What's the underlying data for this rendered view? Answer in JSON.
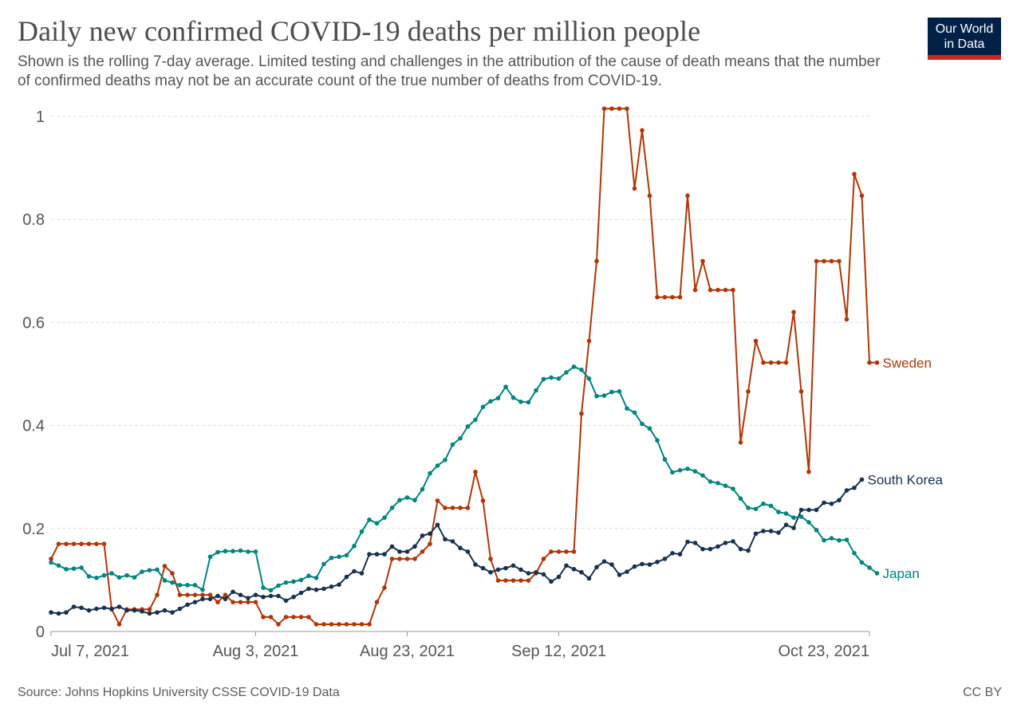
{
  "header": {
    "title": "Daily new confirmed COVID-19 deaths per million people",
    "subtitle": "Shown is the rolling 7-day average. Limited testing and challenges in the attribution of the cause of death means that the number of confirmed deaths may not be an accurate count of the true number of deaths from COVID-19.",
    "logo_line1": "Our World",
    "logo_line2": "in Data"
  },
  "footer": {
    "source": "Source: Johns Hopkins University CSSE COVID-19 Data",
    "license": "CC BY"
  },
  "chart_data": {
    "type": "line",
    "title": "Daily new confirmed COVID-19 deaths per million people",
    "subtitle": "Shown is the rolling 7-day average.",
    "xlabel": "",
    "ylabel": "",
    "x_start": "2021-07-07",
    "x_end": "2021-10-23",
    "x_ticks": [
      {
        "label": "Jul 7, 2021",
        "day": 0
      },
      {
        "label": "Aug 3, 2021",
        "day": 27
      },
      {
        "label": "Aug 23, 2021",
        "day": 47
      },
      {
        "label": "Sep 12, 2021",
        "day": 67
      },
      {
        "label": "Oct 23, 2021",
        "day": 108
      }
    ],
    "y_ticks": [
      {
        "label": "0",
        "value": 0
      },
      {
        "label": "0.2",
        "value": 0.2
      },
      {
        "label": "0.4",
        "value": 0.4
      },
      {
        "label": "0.6",
        "value": 0.6
      },
      {
        "label": "0.8",
        "value": 0.8
      },
      {
        "label": "1",
        "value": 1
      }
    ],
    "ylim": [
      0,
      1
    ],
    "grid": "horizontal-dashed",
    "legend": "inline-right",
    "series": [
      {
        "name": "Sweden",
        "color": "#b13507",
        "values": [
          0.141,
          0.17,
          0.17,
          0.17,
          0.17,
          0.17,
          0.17,
          0.17,
          0.043,
          0.014,
          0.043,
          0.043,
          0.043,
          0.043,
          0.071,
          0.127,
          0.113,
          0.071,
          0.071,
          0.071,
          0.071,
          0.071,
          0.057,
          0.071,
          0.057,
          0.057,
          0.057,
          0.057,
          0.028,
          0.028,
          0.014,
          0.028,
          0.028,
          0.028,
          0.028,
          0.014,
          0.014,
          0.014,
          0.014,
          0.014,
          0.014,
          0.014,
          0.014,
          0.057,
          0.085,
          0.141,
          0.141,
          0.141,
          0.141,
          0.155,
          0.17,
          0.254,
          0.24,
          0.24,
          0.24,
          0.24,
          0.31,
          0.254,
          0.141,
          0.099,
          0.099,
          0.099,
          0.099,
          0.099,
          0.113,
          0.141,
          0.155,
          0.155,
          0.155,
          0.155,
          0.423,
          0.564,
          0.719,
          1.015,
          1.015,
          1.015,
          1.015,
          0.86,
          0.973,
          0.846,
          0.649,
          0.649,
          0.649,
          0.649,
          0.846,
          0.663,
          0.719,
          0.663,
          0.663,
          0.663,
          0.663,
          0.367,
          0.466,
          0.564,
          0.522,
          0.522,
          0.522,
          0.522,
          0.62,
          0.466,
          0.31,
          0.719,
          0.719,
          0.719,
          0.719,
          0.606,
          0.888,
          0.846,
          0.522,
          0.522
        ]
      },
      {
        "name": "South Korea",
        "color": "#18314f",
        "values": [
          0.037,
          0.035,
          0.037,
          0.048,
          0.046,
          0.041,
          0.044,
          0.046,
          0.044,
          0.048,
          0.041,
          0.041,
          0.039,
          0.035,
          0.037,
          0.041,
          0.037,
          0.044,
          0.052,
          0.057,
          0.063,
          0.063,
          0.069,
          0.063,
          0.077,
          0.071,
          0.065,
          0.071,
          0.067,
          0.069,
          0.069,
          0.06,
          0.067,
          0.075,
          0.083,
          0.081,
          0.083,
          0.087,
          0.091,
          0.106,
          0.117,
          0.113,
          0.15,
          0.15,
          0.15,
          0.165,
          0.155,
          0.155,
          0.165,
          0.186,
          0.19,
          0.207,
          0.179,
          0.175,
          0.162,
          0.155,
          0.13,
          0.123,
          0.115,
          0.12,
          0.123,
          0.128,
          0.12,
          0.113,
          0.115,
          0.111,
          0.097,
          0.106,
          0.128,
          0.121,
          0.115,
          0.103,
          0.125,
          0.136,
          0.13,
          0.11,
          0.116,
          0.126,
          0.131,
          0.13,
          0.135,
          0.141,
          0.152,
          0.15,
          0.174,
          0.172,
          0.16,
          0.16,
          0.165,
          0.172,
          0.175,
          0.16,
          0.157,
          0.19,
          0.195,
          0.195,
          0.192,
          0.207,
          0.201,
          0.236,
          0.236,
          0.236,
          0.25,
          0.248,
          0.255,
          0.274,
          0.279,
          0.295
        ]
      },
      {
        "name": "Japan",
        "color": "#00847e",
        "values": [
          0.134,
          0.128,
          0.121,
          0.122,
          0.124,
          0.107,
          0.104,
          0.109,
          0.113,
          0.105,
          0.109,
          0.105,
          0.116,
          0.119,
          0.12,
          0.099,
          0.095,
          0.09,
          0.09,
          0.09,
          0.081,
          0.145,
          0.154,
          0.156,
          0.156,
          0.157,
          0.155,
          0.155,
          0.085,
          0.08,
          0.089,
          0.095,
          0.097,
          0.1,
          0.108,
          0.104,
          0.131,
          0.143,
          0.145,
          0.148,
          0.166,
          0.194,
          0.217,
          0.21,
          0.221,
          0.24,
          0.255,
          0.26,
          0.255,
          0.276,
          0.307,
          0.322,
          0.333,
          0.363,
          0.375,
          0.398,
          0.411,
          0.436,
          0.447,
          0.453,
          0.475,
          0.454,
          0.446,
          0.445,
          0.468,
          0.49,
          0.493,
          0.491,
          0.503,
          0.514,
          0.508,
          0.491,
          0.457,
          0.458,
          0.465,
          0.466,
          0.433,
          0.425,
          0.403,
          0.394,
          0.371,
          0.334,
          0.309,
          0.313,
          0.316,
          0.311,
          0.303,
          0.291,
          0.288,
          0.283,
          0.277,
          0.258,
          0.24,
          0.238,
          0.248,
          0.244,
          0.232,
          0.229,
          0.221,
          0.223,
          0.212,
          0.197,
          0.177,
          0.181,
          0.177,
          0.178,
          0.152,
          0.134,
          0.124,
          0.113
        ]
      }
    ]
  }
}
